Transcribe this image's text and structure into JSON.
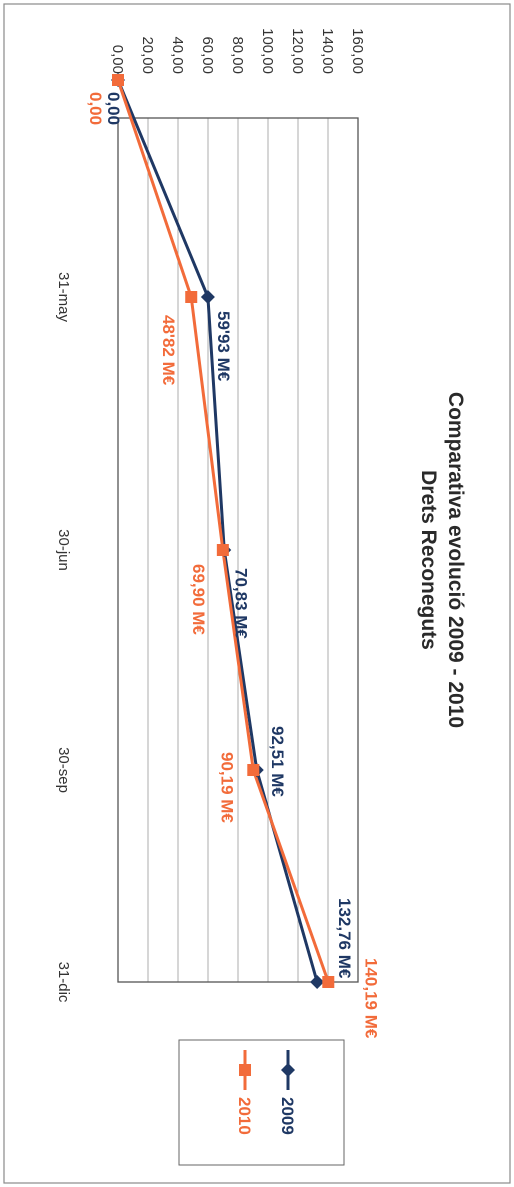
{
  "chart_data": {
    "type": "line",
    "title": "Comparativa evolució 2009 - 2010",
    "subtitle": "Drets Reconeguts",
    "categories": [
      "",
      "31-may",
      "30-jun",
      "30-sep",
      "31-dic"
    ],
    "y_ticks": [
      "0,00",
      "20,00",
      "40,00",
      "60,00",
      "80,00",
      "100,00",
      "120,00",
      "140,00",
      "160,00"
    ],
    "ylim": [
      0,
      160
    ],
    "grid": true,
    "legend_position": "right",
    "series": [
      {
        "name": "2009",
        "color": "#1f3864",
        "marker": "diamond",
        "values": [
          0,
          59.93,
          70.83,
          92.51,
          132.76
        ],
        "labels": [
          "0,00",
          "59'93 M€",
          "70,83 M€",
          "92,51 M€",
          "132,76 M€"
        ]
      },
      {
        "name": "2010",
        "color": "#f26b3a",
        "marker": "square",
        "values": [
          0,
          48.82,
          69.9,
          90.19,
          140.19
        ],
        "labels": [
          "0,00",
          "48'82 M€",
          "69,90 M€",
          "90,19 M€",
          "140,19 M€"
        ]
      }
    ]
  }
}
